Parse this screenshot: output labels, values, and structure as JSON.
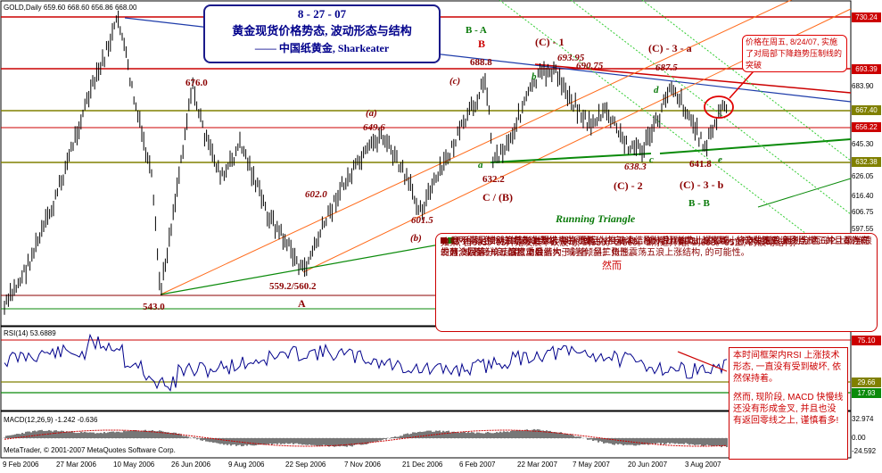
{
  "header": {
    "symbol_line": "GOLD,Daily  659.60 668.60 656.86 668.00",
    "title_date": "8 - 27 - 07",
    "title_main": "黄金现货价格势态, 波动形态与结构",
    "title_author": "——  中国纸黄金, Sharkeater"
  },
  "price_axis": [
    "730.24",
    "693.39",
    "683.90",
    "667.40",
    "656.22",
    "645.30",
    "632.38",
    "626.05",
    "616.40",
    "606.75",
    "597.55"
  ],
  "rsi_axis": [
    "75.10",
    "29.66",
    "17.93"
  ],
  "macd_axis": [
    "32.974",
    "0.00",
    "-24.592"
  ],
  "time_axis": [
    "9 Feb 2006",
    "27 Mar 2006",
    "10 May 2006",
    "26 Jun 2006",
    "9 Aug 2006",
    "22 Sep 2006",
    "7 Nov 2006",
    "21 Dec 2006",
    "6 Feb 2007",
    "22 Mar 2007",
    "7 May 2007",
    "20 Jun 2007",
    "3 Aug 2007"
  ],
  "wave_labels": {
    "p676": "676.0",
    "p6496": "649.6",
    "p602": "602.0",
    "p6015": "601.5",
    "p5592": "559.2/560.2",
    "p543": "543.0",
    "A": "A",
    "pa": "(a)",
    "pb": "(b)",
    "pc": "(c)",
    "BA": "B - A",
    "B": "B",
    "p6888": "688.8",
    "C1": "(C) - 1",
    "p69395": "693.95",
    "p69075": "690.75",
    "C3a": "(C) - 3 - a",
    "p6875": "687.5",
    "sb": "b",
    "sd": "d",
    "sa": "a",
    "sc": "c",
    "se": "e",
    "p6322": "632.2",
    "CB": "C / (B)",
    "p6383": "638.3",
    "C2": "(C) - 2",
    "p6418": "641.8",
    "C3b": "(C) - 3 - b",
    "BB": "B - B",
    "running": "Running Triangle"
  },
  "callout_top": "价格在周五, 8/24/07, 实施了对局部下降趋势压制线的突破",
  "main_note": [
    "两种颜色标注的波动结构, 都指引着价格自641。8附近开始向上的攀升, 将产生五浪上涨结构。并且都存在发展, 或者简单五浪推动浪结构; 或者倾斜三角形震荡五浪上涨结构, 的可能性。",
    "如果, 自693。95开始发展下跌波动, 到559。2/560。2附近开始, 到693。95止, 的波动结构,",
    "1) 既不满足推动浪结构的要求 —— 假定为推动浪结构, 对比, 601。5为某一分波段第四浪终点, 而602。0 为同一分波段第一浪起点, 重叠;",
    "2) 也不满足倾斜三角形上涨结构的要求 —— 三个上涨分浪, 幅度上越来越小, 成收敛性; 而划分这三个上涨分浪的两个回落分浪, 幅度上后者大于前者, 呈扩张性。"
  ],
  "ranhou": "然而",
  "rsi_label": "RSI(14) 53.6889",
  "rsi_note": "本时间框架内RSI 上涨技术形态, 一直没有受到破坏, 依然保持着。",
  "macd_note": "然而, 现阶段, MACD 快慢线还没有形成金叉, 并且也没有返回零线之上, 谨慎看多!",
  "macd_label": "MACD(12,26,9) -1.242 -0.636",
  "copyright": "MetaTrader, © 2001-2007 MetaQuotes Software Corp.",
  "colors": {
    "red": "#cc0000",
    "darkred": "#8b0000",
    "green": "#0a8a0a",
    "navy": "#00008b",
    "olive": "#808000",
    "brown": "#8b4513"
  }
}
